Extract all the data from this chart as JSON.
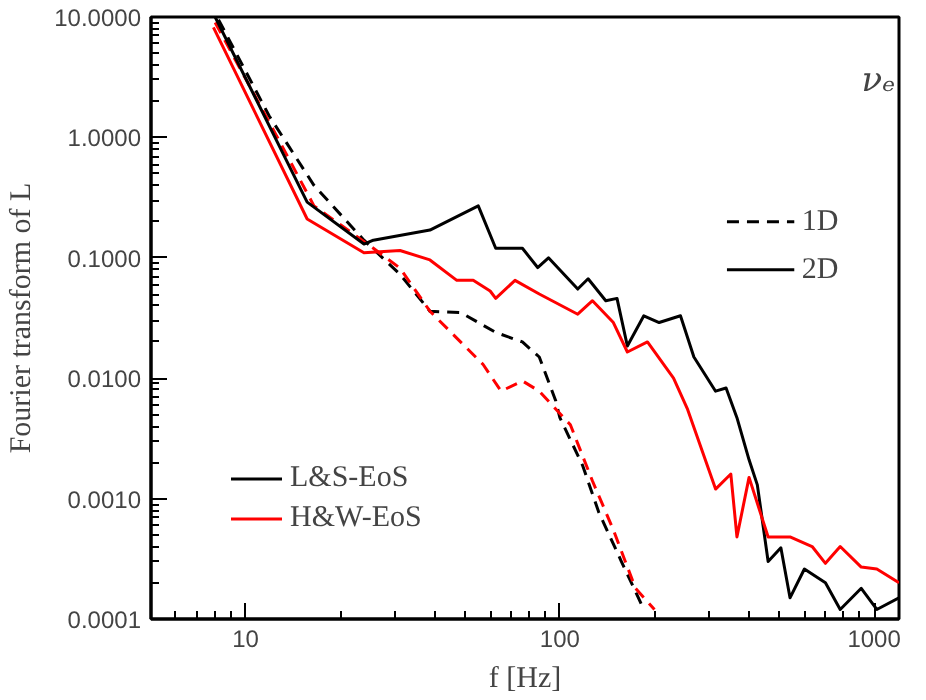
{
  "chart_data": {
    "type": "line",
    "xlabel": "f [Hz]",
    "ylabel": "Fourier transform of L",
    "log": "xy",
    "xlim": [
      5,
      1200
    ],
    "ylim": [
      0.0001,
      10
    ],
    "xticks": [
      10,
      100,
      1000
    ],
    "yticks": [
      {
        "value": 0.0001,
        "label": "0.0001"
      },
      {
        "value": 0.001,
        "label": "0.0010"
      },
      {
        "value": 0.01,
        "label": "0.0100"
      },
      {
        "value": 0.1,
        "label": "0.1000"
      },
      {
        "value": 1,
        "label": "1.0000"
      },
      {
        "value": 10,
        "label": "10.0000"
      }
    ],
    "legend": "bottom left",
    "grid": false,
    "annotations": [
      "νₑ",
      "1D",
      "2D"
    ],
    "series": [
      {
        "color": "#000000",
        "line_style": "dashed",
        "x": [
          8.2,
          11.9,
          16.5,
          23.8,
          31,
          38.6,
          48.5,
          62.5,
          76,
          86,
          97,
          100,
          118,
          133,
          157,
          185
        ],
        "values": [
          9.5,
          1.5,
          0.4,
          0.14,
          0.073,
          0.036,
          0.035,
          0.024,
          0.02,
          0.015,
          0.0065,
          0.0047,
          0.0019,
          0.00077,
          0.0003,
          0.00012
        ]
      },
      {
        "color": "#ff0000",
        "line_style": "dashed",
        "x": [
          8,
          12.5,
          16.5,
          25.5,
          31,
          38.6,
          57,
          65,
          76,
          86,
          108,
          127,
          148,
          174,
          200
        ],
        "values": [
          9,
          1.05,
          0.27,
          0.12,
          0.082,
          0.036,
          0.013,
          0.0078,
          0.0095,
          0.0078,
          0.0041,
          0.0014,
          0.00055,
          0.00018,
          0.00012
        ]
      },
      {
        "name": "L&S-EoS",
        "color": "#000000",
        "line_style": "solid",
        "x": [
          8,
          15.7,
          23.8,
          25.5,
          38.6,
          55,
          62.5,
          76,
          85,
          92,
          114,
          123,
          140,
          152,
          164,
          185,
          207,
          242,
          267,
          313,
          338,
          366,
          400,
          425,
          460,
          505,
          540,
          600,
          700,
          780,
          910,
          1020,
          1200
        ],
        "values": [
          10,
          0.29,
          0.13,
          0.14,
          0.17,
          0.27,
          0.12,
          0.12,
          0.083,
          0.1,
          0.055,
          0.067,
          0.044,
          0.046,
          0.0185,
          0.033,
          0.029,
          0.033,
          0.015,
          0.0078,
          0.0083,
          0.0047,
          0.0021,
          0.0013,
          0.0003,
          0.00039,
          0.00015,
          0.00026,
          0.0002,
          0.00012,
          0.00018,
          0.00012,
          0.00015
        ]
      },
      {
        "name": "H&W-EoS",
        "color": "#ff0000",
        "line_style": "solid",
        "x": [
          7.9,
          15.7,
          23.8,
          31,
          38.6,
          47,
          53,
          60,
          62.5,
          72,
          86,
          114,
          127,
          148,
          164,
          190,
          230,
          255,
          313,
          350,
          366,
          400,
          460,
          540,
          635,
          700,
          780,
          910,
          1020,
          1200
        ],
        "values": [
          8.2,
          0.21,
          0.11,
          0.115,
          0.096,
          0.065,
          0.065,
          0.053,
          0.046,
          0.065,
          0.05,
          0.034,
          0.044,
          0.029,
          0.0165,
          0.02,
          0.01,
          0.0055,
          0.0012,
          0.0016,
          0.00048,
          0.0015,
          0.00048,
          0.00048,
          0.0004,
          0.00029,
          0.0004,
          0.00027,
          0.00026,
          0.0002
        ]
      }
    ]
  }
}
